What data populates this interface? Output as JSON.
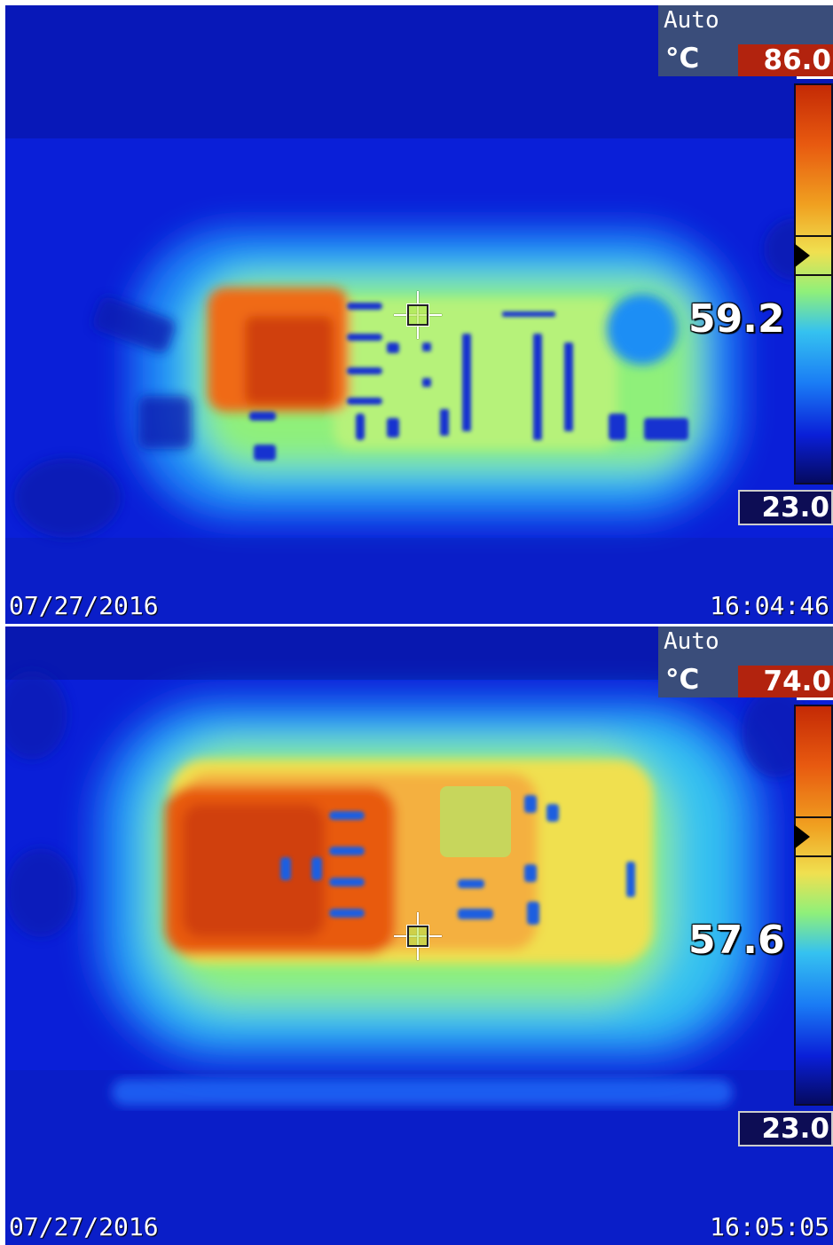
{
  "frames": [
    {
      "mode": "Auto",
      "unit": "°C",
      "range_max": "86.0",
      "range_min": "23.0",
      "spot_temperature": "59.2",
      "spot_level_fraction": 0.57,
      "date": "07/27/2016",
      "time": "16:04:46"
    },
    {
      "mode": "Auto",
      "unit": "°C",
      "range_max": "74.0",
      "range_min": "23.0",
      "spot_temperature": "57.6",
      "spot_level_fraction": 0.67,
      "date": "07/27/2016",
      "time": "16:05:05"
    }
  ],
  "palette": {
    "cold": "#0a1fd8",
    "cool": "#1a7cf5",
    "mid": "#8ff07a",
    "warm": "#f0e050",
    "hot": "#e85a10",
    "hottest": "#c42a05"
  }
}
